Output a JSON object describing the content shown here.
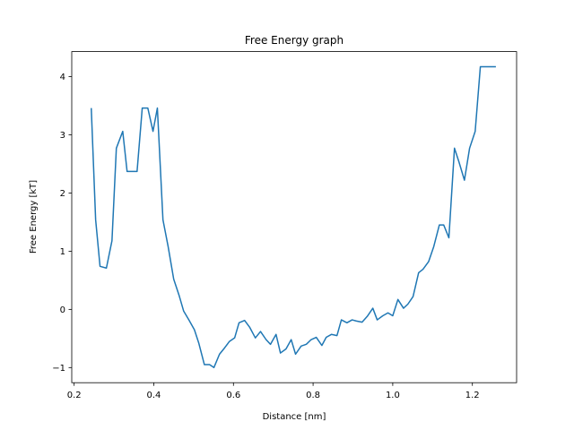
{
  "chart_data": {
    "type": "line",
    "title": "Free Energy graph",
    "x_label": "Distance [nm]",
    "y_label": "Free Energy [kT]",
    "series": [
      {
        "color": "#1f77b4",
        "x": [
          0.243,
          0.254,
          0.265,
          0.281,
          0.295,
          0.306,
          0.322,
          0.333,
          0.358,
          0.371,
          0.385,
          0.398,
          0.409,
          0.423,
          0.436,
          0.45,
          0.464,
          0.475,
          0.488,
          0.502,
          0.513,
          0.527,
          0.54,
          0.551,
          0.565,
          0.578,
          0.59,
          0.603,
          0.614,
          0.628,
          0.641,
          0.655,
          0.668,
          0.682,
          0.693,
          0.707,
          0.718,
          0.732,
          0.745,
          0.756,
          0.77,
          0.783,
          0.795,
          0.808,
          0.822,
          0.833,
          0.846,
          0.86,
          0.871,
          0.885,
          0.898,
          0.909,
          0.923,
          0.936,
          0.95,
          0.961,
          0.975,
          0.988,
          1.0,
          1.013,
          1.027,
          1.038,
          1.051,
          1.065,
          1.076,
          1.09,
          1.103,
          1.117,
          1.128,
          1.141,
          1.155,
          1.166,
          1.18,
          1.193,
          1.207,
          1.22,
          1.259
        ],
        "values": [
          3.46,
          1.54,
          0.74,
          0.71,
          1.18,
          2.77,
          3.06,
          2.37,
          2.37,
          3.46,
          3.46,
          3.06,
          3.46,
          1.54,
          1.08,
          0.52,
          0.23,
          -0.03,
          -0.18,
          -0.35,
          -0.58,
          -0.95,
          -0.95,
          -1.0,
          -0.77,
          -0.66,
          -0.55,
          -0.49,
          -0.23,
          -0.19,
          -0.31,
          -0.49,
          -0.38,
          -0.52,
          -0.6,
          -0.43,
          -0.75,
          -0.68,
          -0.52,
          -0.77,
          -0.63,
          -0.6,
          -0.52,
          -0.48,
          -0.62,
          -0.48,
          -0.43,
          -0.45,
          -0.18,
          -0.23,
          -0.18,
          -0.2,
          -0.22,
          -0.12,
          0.02,
          -0.18,
          -0.11,
          -0.06,
          -0.11,
          0.17,
          0.02,
          0.09,
          0.22,
          0.63,
          0.69,
          0.82,
          1.08,
          1.45,
          1.45,
          1.23,
          2.77,
          2.54,
          2.22,
          2.77,
          3.06,
          4.17,
          4.17
        ]
      }
    ],
    "xlim": [
      0.194,
      1.311
    ],
    "xticks": [
      0.2,
      0.4,
      0.6,
      0.8,
      {
        "value": 1,
        "label": "1.0"
      },
      1.2
    ],
    "ylim": [
      -1.26,
      4.43
    ],
    "yticks": [
      {
        "value": -1,
        "label": "−1"
      },
      0,
      1,
      2,
      3,
      4
    ],
    "grid": false
  }
}
